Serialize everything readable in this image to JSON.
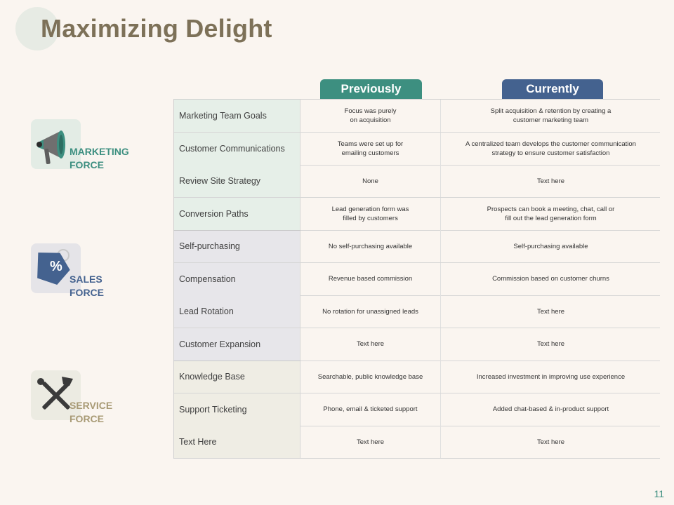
{
  "title": "Maximizing Delight",
  "tabs": {
    "previously": "Previously",
    "currently": "Currently"
  },
  "groups": [
    {
      "label": "MARKETING\nFORCE",
      "color": "#3d8f80",
      "icon": "megaphone-icon"
    },
    {
      "label": "SALES\nFORCE",
      "color": "#44628f",
      "icon": "percent-tag-icon"
    },
    {
      "label": "SERVICE\nFORCE",
      "color": "#a89a75",
      "icon": "tools-icon"
    }
  ],
  "rows": [
    {
      "label": "Marketing Team Goals",
      "previously": "Focus was purely\non acquisition",
      "currently": "Split acquisition & retention by creating a\ncustomer marketing team"
    },
    {
      "label": "Customer Communications",
      "previously": "Teams  were set up for\nemailing  customers",
      "currently": "A centralized team develops the customer communication\nstrategy to ensure customer satisfaction"
    },
    {
      "label": "Review  Site Strategy",
      "previously": "None",
      "currently": "Text here"
    },
    {
      "label": "Conversion  Paths",
      "previously": "Lead generation form was\nfilled by customers",
      "currently": "Prospects can book a meeting, chat, call or\nfill out the lead generation form"
    },
    {
      "label": "Self-purchasing",
      "previously": "No self-purchasing available",
      "currently": "Self-purchasing available"
    },
    {
      "label": "Compensation",
      "previously": "Revenue based commission",
      "currently": "Commission  based on customer churns"
    },
    {
      "label": "Lead Rotation",
      "previously": "No rotation for unassigned leads",
      "currently": "Text here"
    },
    {
      "label": "Customer Expansion",
      "previously": "Text here",
      "currently": "Text here"
    },
    {
      "label": "Knowledge  Base",
      "previously": "Searchable, public knowledge base",
      "currently": "Increased investment in improving use experience"
    },
    {
      "label": "Support Ticketing",
      "previously": "Phone,  email  & ticketed support",
      "currently": "Added chat-based & in-product support"
    },
    {
      "label": "Text Here",
      "previously": "Text here",
      "currently": "Text here"
    }
  ],
  "page_number": "11"
}
